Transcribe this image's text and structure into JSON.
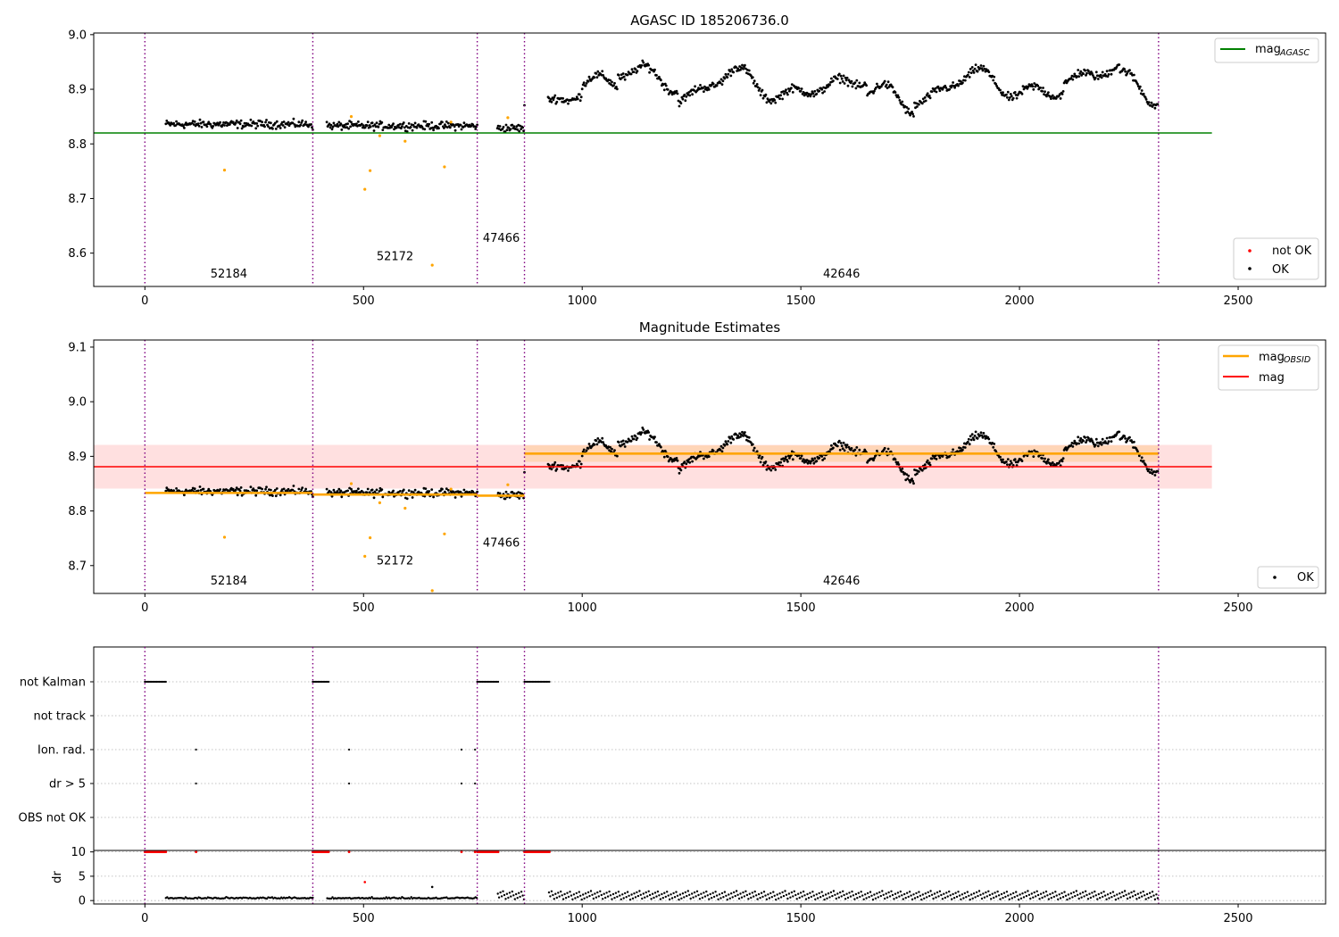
{
  "chart_data": [
    {
      "type": "scatter",
      "title": "AGASC ID 185206736.0",
      "xlim": [
        -117,
        2700
      ],
      "ylim": [
        8.539,
        9.003
      ],
      "xticks": [
        "0",
        "500",
        "1000",
        "1500",
        "2000",
        "2500"
      ],
      "yticks": [
        "8.6",
        "8.7",
        "8.8",
        "8.9",
        "9.0"
      ],
      "obsid_boundaries": [
        0,
        384,
        760,
        868,
        2318
      ],
      "obsid_labels": [
        {
          "text": "52184",
          "x": 192,
          "y": 8.555
        },
        {
          "text": "52172",
          "x": 572,
          "y": 8.587
        },
        {
          "text": "47466",
          "x": 815,
          "y": 8.621
        },
        {
          "text": "42646",
          "x": 1593,
          "y": 8.555
        }
      ],
      "series": [
        {
          "name": "mag_AGASC",
          "kind": "hline",
          "y": 8.82,
          "x_range": [
            -117,
            2440
          ],
          "color": "#008000"
        }
      ],
      "legend_top": {
        "mag_prefix": "mag",
        "mag_sub": "AGASC",
        "placement": "upper right"
      },
      "legend_bottom": {
        "items": [
          "not OK",
          "OK"
        ],
        "placement": "lower right"
      },
      "ok_points_color": "#000000",
      "excluded_points_color": "#ffa500"
    },
    {
      "type": "scatter",
      "title": "Magnitude Estimates",
      "xlim": [
        -117,
        2700
      ],
      "ylim": [
        8.649,
        9.113
      ],
      "xticks": [
        "0",
        "500",
        "1000",
        "1500",
        "2000",
        "2500"
      ],
      "yticks": [
        "8.7",
        "8.8",
        "8.9",
        "9.0",
        "9.1"
      ],
      "obsid_boundaries": [
        0,
        384,
        760,
        868,
        2318
      ],
      "obsid_labels": [
        {
          "text": "52184",
          "x": 192,
          "y": 8.665
        },
        {
          "text": "52172",
          "x": 572,
          "y": 8.702
        },
        {
          "text": "47466",
          "x": 815,
          "y": 8.735
        },
        {
          "text": "42646",
          "x": 1593,
          "y": 8.665
        }
      ],
      "series": [
        {
          "name": "mag",
          "kind": "hline",
          "y": 8.881,
          "band": [
            8.841,
            8.921
          ],
          "x_range": [
            -117,
            2440
          ],
          "color": "#ff0000"
        },
        {
          "name": "mag_OBSID",
          "kind": "segments",
          "color": "#ffa500",
          "segments": [
            {
              "x": [
                0,
                384
              ],
              "y": 8.833
            },
            {
              "x": [
                384,
                760
              ],
              "y": 8.83
            },
            {
              "x": [
                760,
                868
              ],
              "y": 8.828
            },
            {
              "x": [
                868,
                2318
              ],
              "y": 8.905
            }
          ]
        }
      ],
      "legend_top": {
        "items": [
          "mag",
          "mag"
        ],
        "sub": "OBSID",
        "placement": "upper right"
      },
      "legend_bottom": {
        "items": [
          "OK"
        ],
        "placement": "lower right"
      }
    },
    {
      "type": "scatter",
      "title": "",
      "xlim": [
        -117,
        2700
      ],
      "categories": [
        "not Kalman",
        "not track",
        "Ion. rad.",
        "dr > 5",
        "OBS not OK"
      ],
      "flag_points": {
        "not Kalman": [
          [
            0,
            48
          ],
          [
            384,
            420
          ],
          [
            760,
            808
          ],
          [
            868,
            925
          ]
        ],
        "Ion. rad.": [
          117,
          467,
          724,
          755
        ],
        "dr > 5": [
          117,
          467,
          724,
          755
        ]
      },
      "dr_panel": {
        "ylabel": "dr",
        "yticks": [
          "0",
          "5",
          "10"
        ],
        "ylim": [
          -0.7,
          10.3
        ]
      },
      "xticks": [
        "0",
        "500",
        "1000",
        "1500",
        "2000",
        "2500"
      ]
    }
  ]
}
